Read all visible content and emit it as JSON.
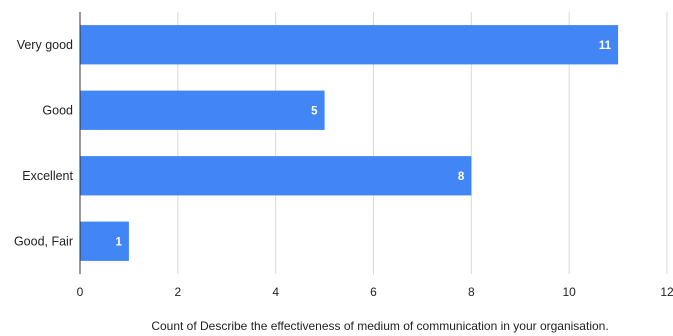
{
  "chart_data": {
    "type": "bar",
    "orientation": "horizontal",
    "categories": [
      "Very good",
      "Good",
      "Excellent",
      "Good, Fair"
    ],
    "values": [
      11,
      5,
      8,
      1
    ],
    "data_labels": [
      "11",
      "5",
      "8",
      "1"
    ],
    "xlabel": "Count of Describe the effectiveness of medium of communication in your organisation.",
    "xlim": [
      0,
      12
    ],
    "x_ticks": [
      "0",
      "2",
      "4",
      "6",
      "8",
      "10",
      "12"
    ],
    "grid": true,
    "bar_color": "#4285f4",
    "legend": "none"
  }
}
